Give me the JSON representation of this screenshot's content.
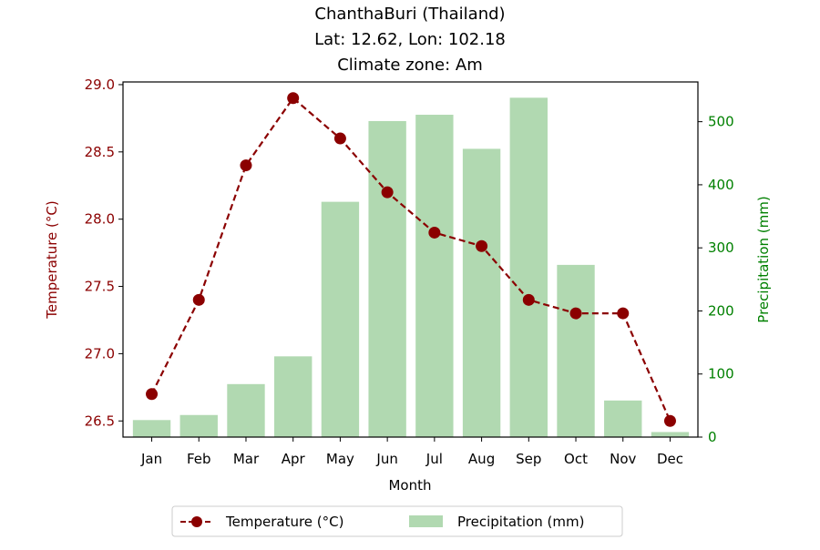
{
  "chart_data": {
    "type": "bar+line",
    "title_lines": [
      "ChanthaBuri (Thailand)",
      "Lat: 12.62, Lon: 102.18",
      "Climate zone: Am"
    ],
    "categories": [
      "Jan",
      "Feb",
      "Mar",
      "Apr",
      "May",
      "Jun",
      "Jul",
      "Aug",
      "Sep",
      "Oct",
      "Nov",
      "Dec"
    ],
    "xlabel": "Month",
    "temperature": {
      "name": "Temperature (°C)",
      "axis_label": "Temperature (°C)",
      "values": [
        26.7,
        27.4,
        28.4,
        28.9,
        28.6,
        28.2,
        27.9,
        27.8,
        27.4,
        27.3,
        27.3,
        26.5
      ],
      "ylim": [
        26.38,
        29.02
      ],
      "ticks": [
        26.5,
        27.0,
        27.5,
        28.0,
        28.5,
        29.0
      ],
      "tick_labels": [
        "26.5",
        "27.0",
        "27.5",
        "28.0",
        "28.5",
        "29.0"
      ],
      "color": "#8b0000",
      "style": "dashed line with circle markers"
    },
    "precipitation": {
      "name": "Precipitation (mm)",
      "axis_label": "Precipitation (mm)",
      "values": [
        27,
        35,
        84,
        128,
        373,
        501,
        511,
        457,
        538,
        273,
        58,
        8
      ],
      "ylim": [
        0,
        563
      ],
      "ticks": [
        0,
        100,
        200,
        300,
        400,
        500
      ],
      "tick_labels": [
        "0",
        "100",
        "200",
        "300",
        "400",
        "500"
      ],
      "color": "#b1d9b1",
      "axis_color": "#008000"
    },
    "legend": {
      "placement": "bottom-center",
      "entries": [
        "Temperature (°C)",
        "Precipitation (mm)"
      ]
    },
    "grid": false
  }
}
